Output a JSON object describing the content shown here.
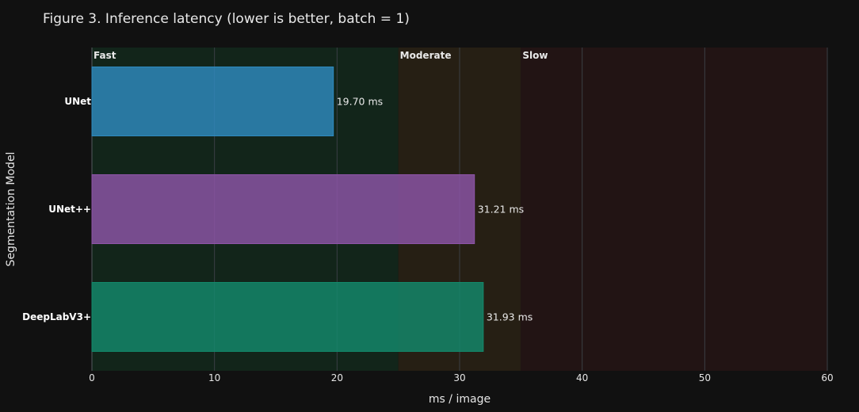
{
  "chart_data": {
    "type": "bar",
    "orientation": "horizontal",
    "title": "Figure 3. Inference latency (lower is better, batch = 1)",
    "xlabel": "ms / image",
    "ylabel": "Segmentation Model",
    "xlim": [
      0,
      60
    ],
    "xticks": [
      0,
      10,
      20,
      30,
      40,
      50,
      60
    ],
    "grid": true,
    "categories": [
      "UNet",
      "UNet++",
      "DeepLabV3+"
    ],
    "values": [
      19.7,
      31.21,
      31.93
    ],
    "data_labels": [
      "19.70 ms",
      "31.21 ms",
      "31.93 ms"
    ],
    "bar_colors": [
      "#2e8bc0",
      "#8e55a8",
      "#138a6c"
    ],
    "zones": [
      {
        "label": "Fast",
        "from": 0,
        "to": 25,
        "color": "#12251a"
      },
      {
        "label": "Moderate",
        "from": 25,
        "to": 35,
        "color": "#261f14"
      },
      {
        "label": "Slow",
        "from": 35,
        "to": 60,
        "color": "#221414"
      }
    ]
  }
}
